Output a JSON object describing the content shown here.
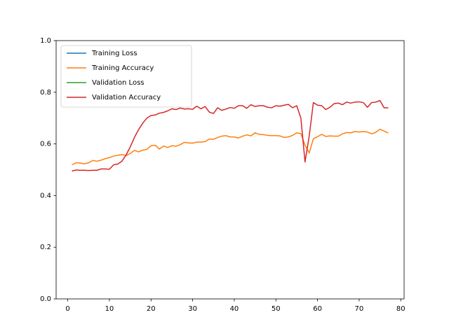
{
  "chart_data": {
    "type": "line",
    "x": [
      1,
      2,
      3,
      4,
      5,
      6,
      7,
      8,
      9,
      10,
      11,
      12,
      13,
      14,
      15,
      16,
      17,
      18,
      19,
      20,
      21,
      22,
      23,
      24,
      25,
      26,
      27,
      28,
      29,
      30,
      31,
      32,
      33,
      34,
      35,
      36,
      37,
      38,
      39,
      40,
      41,
      42,
      43,
      44,
      45,
      46,
      47,
      48,
      49,
      50,
      51,
      52,
      53,
      54,
      55,
      56,
      57,
      58,
      59,
      60,
      61,
      62,
      63,
      64,
      65,
      66,
      67,
      68,
      69,
      70,
      71,
      72,
      73,
      74,
      75,
      76,
      77
    ],
    "series": [
      {
        "name": "Training Loss",
        "color": "#1f77b4",
        "values": [
          null,
          null,
          null,
          null,
          null,
          null,
          null,
          null,
          null,
          null,
          null,
          null,
          null,
          null,
          null,
          null,
          null,
          null,
          null,
          null,
          null,
          null,
          null,
          null,
          null,
          null,
          null,
          null,
          null,
          null,
          null,
          null,
          null,
          null,
          null,
          null,
          null,
          null,
          null,
          null,
          null,
          null,
          null,
          null,
          null,
          null,
          null,
          null,
          null,
          null,
          null,
          null,
          null,
          null,
          null,
          null,
          null,
          null,
          null,
          null,
          null,
          null,
          null,
          null,
          null,
          null,
          null,
          null,
          null,
          null,
          null,
          null,
          null,
          null,
          null,
          null,
          null
        ]
      },
      {
        "name": "Training Accuracy",
        "color": "#ff7f0e",
        "values": [
          0.519,
          0.527,
          0.526,
          0.523,
          0.527,
          0.536,
          0.533,
          0.537,
          0.543,
          0.547,
          0.553,
          0.556,
          0.559,
          0.555,
          0.563,
          0.575,
          0.569,
          0.576,
          0.579,
          0.593,
          0.595,
          0.58,
          0.592,
          0.586,
          0.593,
          0.591,
          0.597,
          0.606,
          0.604,
          0.603,
          0.607,
          0.607,
          0.609,
          0.619,
          0.618,
          0.625,
          0.63,
          0.632,
          0.627,
          0.627,
          0.623,
          0.63,
          0.635,
          0.631,
          0.643,
          0.637,
          0.636,
          0.633,
          0.632,
          0.632,
          0.631,
          0.625,
          0.627,
          0.633,
          0.643,
          0.64,
          0.595,
          0.565,
          0.62,
          0.628,
          0.637,
          0.629,
          0.631,
          0.63,
          0.63,
          0.639,
          0.644,
          0.643,
          0.648,
          0.646,
          0.648,
          0.646,
          0.639,
          0.645,
          0.657,
          0.65,
          0.642
        ]
      },
      {
        "name": "Validation Loss",
        "color": "#2ca02c",
        "values": [
          null,
          null,
          null,
          null,
          null,
          null,
          null,
          null,
          null,
          null,
          null,
          null,
          null,
          null,
          null,
          null,
          null,
          null,
          null,
          null,
          null,
          null,
          null,
          null,
          null,
          null,
          null,
          null,
          null,
          null,
          null,
          null,
          null,
          null,
          null,
          null,
          null,
          null,
          null,
          null,
          null,
          null,
          null,
          null,
          null,
          null,
          null,
          null,
          null,
          null,
          null,
          null,
          null,
          null,
          null,
          null,
          null,
          null,
          null,
          null,
          null,
          null,
          null,
          null,
          null,
          null,
          null,
          null,
          null,
          null,
          null,
          null,
          null,
          null,
          null,
          null,
          null
        ]
      },
      {
        "name": "Validation Accuracy",
        "color": "#d62728",
        "values": [
          0.495,
          0.499,
          0.498,
          0.498,
          0.497,
          0.498,
          0.498,
          0.503,
          0.503,
          0.502,
          0.519,
          0.522,
          0.533,
          0.557,
          0.588,
          0.625,
          0.655,
          0.68,
          0.7,
          0.71,
          0.712,
          0.719,
          0.722,
          0.728,
          0.736,
          0.733,
          0.739,
          0.735,
          0.736,
          0.734,
          0.746,
          0.736,
          0.745,
          0.723,
          0.718,
          0.74,
          0.73,
          0.735,
          0.741,
          0.738,
          0.748,
          0.748,
          0.738,
          0.752,
          0.745,
          0.748,
          0.748,
          0.742,
          0.74,
          0.748,
          0.746,
          0.75,
          0.753,
          0.74,
          0.748,
          0.7,
          0.53,
          0.63,
          0.76,
          0.75,
          0.748,
          0.733,
          0.742,
          0.756,
          0.758,
          0.752,
          0.762,
          0.758,
          0.762,
          0.763,
          0.76,
          0.742,
          0.76,
          0.762,
          0.768,
          0.74,
          0.74
        ]
      }
    ],
    "xlim": [
      -2.8,
      80.8
    ],
    "xticks": [
      0,
      10,
      20,
      30,
      40,
      50,
      60,
      70,
      80
    ],
    "ylim": [
      0,
      1
    ],
    "yticks": [
      {
        "value": 0,
        "label": "0.0"
      },
      0.2,
      0.4,
      0.6,
      0.8,
      {
        "value": 1,
        "label": "1.0"
      }
    ],
    "grid": false,
    "legend": "upper left"
  }
}
